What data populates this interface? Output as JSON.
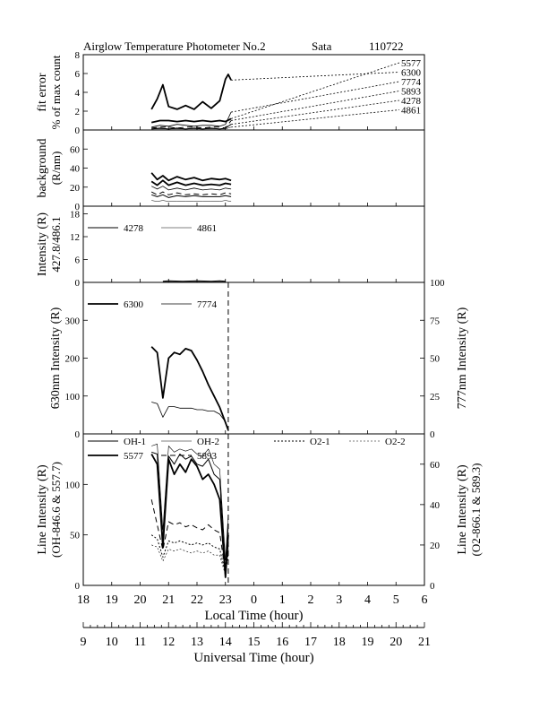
{
  "figure": {
    "title": "Airglow Temperature Photometer No.2",
    "site": "Sata",
    "date_code": "110722"
  },
  "chart_data": [
    {
      "id": "fit-error",
      "type": "line",
      "ylabel": "fit error",
      "ylabel2": "% of max count",
      "ylim": [
        0,
        8
      ],
      "yticks": [
        "0",
        "2",
        "4",
        "6",
        "8"
      ],
      "legend": [
        "5577",
        "6300",
        "7774",
        "5893",
        "4278",
        "4861"
      ],
      "series": [
        {
          "name": "6300",
          "x": [
            20.4,
            20.6,
            20.8,
            21.0,
            21.3,
            21.6,
            21.9,
            22.2,
            22.5,
            22.8,
            23.0,
            23.1,
            23.2
          ],
          "y": [
            2.2,
            3.3,
            4.8,
            2.5,
            2.2,
            2.6,
            2.2,
            3.0,
            2.3,
            3.1,
            5.4,
            5.9,
            5.3
          ]
        },
        {
          "name": "5577",
          "x": [
            20.4,
            20.7,
            21.0,
            21.3,
            21.6,
            21.9,
            22.2,
            22.5,
            22.8,
            23.0,
            23.2
          ],
          "y": [
            0.8,
            1.0,
            1.0,
            0.9,
            1.0,
            0.9,
            1.0,
            0.9,
            1.0,
            0.9,
            1.2
          ]
        },
        {
          "name": "7774",
          "x": [
            20.4,
            20.7,
            21.0,
            21.3,
            21.6,
            21.9,
            22.2,
            22.5,
            22.8,
            23.0,
            23.2
          ],
          "y": [
            0.3,
            0.5,
            0.4,
            0.6,
            0.5,
            0.4,
            0.5,
            0.5,
            0.4,
            0.6,
            1.9
          ]
        },
        {
          "name": "5893",
          "x": [
            20.4,
            20.7,
            21.0,
            21.3,
            21.6,
            21.9,
            22.2,
            22.5,
            22.8,
            23.0,
            23.2
          ],
          "y": [
            0.2,
            0.3,
            0.3,
            0.2,
            0.3,
            0.3,
            0.2,
            0.3,
            0.3,
            0.2,
            1.0
          ]
        },
        {
          "name": "4278",
          "x": [
            20.4,
            20.7,
            21.0,
            21.3,
            21.6,
            21.9,
            22.2,
            22.5,
            22.8,
            23.0,
            23.2
          ],
          "y": [
            0.1,
            0.2,
            0.1,
            0.2,
            0.1,
            0.2,
            0.1,
            0.2,
            0.1,
            0.2,
            0.6
          ]
        },
        {
          "name": "4861",
          "x": [
            20.4,
            20.7,
            21.0,
            21.3,
            21.6,
            21.9,
            22.2,
            22.5,
            22.8,
            23.0,
            23.2
          ],
          "y": [
            0.1,
            0.1,
            0.1,
            0.1,
            0.1,
            0.1,
            0.1,
            0.1,
            0.1,
            0.1,
            0.3
          ]
        }
      ]
    },
    {
      "id": "background",
      "type": "line",
      "ylabel": "background",
      "ylabel2": "(R/nm)",
      "ylim": [
        0,
        80
      ],
      "yticks": [
        "0",
        "20",
        "40",
        "60"
      ],
      "series": [
        {
          "name": "6300",
          "x": [
            20.4,
            20.6,
            20.8,
            21.0,
            21.3,
            21.6,
            21.9,
            22.2,
            22.5,
            22.8,
            23.0,
            23.2
          ],
          "y": [
            35,
            28,
            32,
            27,
            31,
            28,
            30,
            27,
            29,
            28,
            29,
            27
          ]
        },
        {
          "name": "5577",
          "x": [
            20.4,
            20.6,
            20.8,
            21.0,
            21.3,
            21.6,
            21.9,
            22.2,
            22.5,
            22.8,
            23.0,
            23.2
          ],
          "y": [
            26,
            22,
            27,
            22,
            25,
            22,
            24,
            22,
            23,
            22,
            24,
            23
          ]
        },
        {
          "name": "7774",
          "x": [
            20.4,
            20.6,
            20.8,
            21.0,
            21.3,
            21.6,
            21.9,
            22.2,
            22.5,
            22.8,
            23.0,
            23.2
          ],
          "y": [
            21,
            18,
            21,
            17,
            19,
            17,
            19,
            17,
            18,
            17,
            19,
            18
          ]
        },
        {
          "name": "5893",
          "x": [
            20.4,
            20.6,
            20.8,
            21.0,
            21.3,
            21.6,
            21.9,
            22.2,
            22.5,
            22.8,
            23.0,
            23.2
          ],
          "y": [
            15,
            12,
            15,
            12,
            14,
            12,
            13,
            12,
            13,
            12,
            14,
            13
          ]
        },
        {
          "name": "4278",
          "x": [
            20.4,
            20.6,
            20.8,
            21.0,
            21.3,
            21.6,
            21.9,
            22.2,
            22.5,
            22.8,
            23.0,
            23.2
          ],
          "y": [
            12,
            10,
            12,
            9,
            11,
            10,
            11,
            10,
            10,
            10,
            11,
            10
          ]
        },
        {
          "name": "4861",
          "x": [
            20.4,
            20.6,
            20.8,
            21.0,
            21.3,
            21.6,
            21.9,
            22.2,
            22.5,
            22.8,
            23.0,
            23.2
          ],
          "y": [
            6,
            5,
            6,
            5,
            5,
            5,
            5,
            5,
            5,
            5,
            6,
            5
          ]
        }
      ]
    },
    {
      "id": "intensity-427-486",
      "type": "line",
      "ylabel": "Intensity (R)",
      "ylabel2": "427.8/486.1",
      "ylim": [
        0,
        20
      ],
      "yticks": [
        "0",
        "6",
        "12",
        "18"
      ],
      "legend": [
        "4278",
        "4861"
      ],
      "series": [
        {
          "name": "4278",
          "x": [
            20.8,
            21.0,
            21.5,
            22.0,
            22.5,
            22.8,
            23.0
          ],
          "y": [
            0.3,
            0.4,
            0.3,
            0.4,
            0.3,
            0.4,
            0.3
          ]
        },
        {
          "name": "4861",
          "x": [
            20.8,
            21.0,
            21.5,
            22.0,
            22.5,
            22.8,
            23.0
          ],
          "y": [
            0.2,
            0.2,
            0.2,
            0.2,
            0.2,
            0.2,
            0.2
          ]
        }
      ]
    },
    {
      "id": "intensity-630-777",
      "type": "line",
      "ylabel": "630nm Intensity (R)",
      "ylabel_right": "777nm Intensity (R)",
      "ylim": [
        0,
        400
      ],
      "ylim_right": [
        0,
        100
      ],
      "yticks": [
        "0",
        "100",
        "200",
        "300"
      ],
      "yticks_right": [
        "0",
        "25",
        "50",
        "75",
        "100"
      ],
      "legend": [
        "6300",
        "7774"
      ],
      "series": [
        {
          "name": "6300",
          "axis": "left",
          "x": [
            20.4,
            20.6,
            20.8,
            21.0,
            21.2,
            21.4,
            21.6,
            21.8,
            22.0,
            22.2,
            22.4,
            22.6,
            22.8,
            23.0,
            23.1
          ],
          "y": [
            230,
            215,
            95,
            200,
            215,
            210,
            225,
            220,
            195,
            165,
            130,
            100,
            70,
            30,
            10
          ]
        },
        {
          "name": "7774",
          "axis": "right",
          "x": [
            20.4,
            20.6,
            20.8,
            21.0,
            21.2,
            21.4,
            21.6,
            21.8,
            22.0,
            22.2,
            22.4,
            22.6,
            22.8,
            23.0,
            23.1
          ],
          "y": [
            21,
            20,
            11,
            18,
            18,
            17,
            17,
            17,
            16,
            16,
            15,
            15,
            13,
            8,
            3
          ]
        }
      ]
    },
    {
      "id": "line-intensity",
      "type": "line",
      "ylabel": "Line Intensity (R)",
      "ylabel2": "(OH-846.6 & 557.7)",
      "ylabel_right": "Line Intensity (R)",
      "ylabel_right2": "(O2-866.1 & 589.3)",
      "ylim": [
        0,
        150
      ],
      "ylim_right": [
        0,
        75
      ],
      "yticks": [
        "0",
        "50",
        "100"
      ],
      "yticks_right": [
        "0",
        "20",
        "40",
        "60"
      ],
      "legend": [
        "OH-1",
        "OH-2",
        "O2-1",
        "O2-2",
        "5577",
        "5893"
      ],
      "series": [
        {
          "name": "OH-1",
          "axis": "left",
          "x": [
            20.4,
            20.6,
            20.8,
            21.0,
            21.2,
            21.4,
            21.6,
            21.8,
            22.0,
            22.2,
            22.4,
            22.6,
            22.8,
            23.0,
            23.1
          ],
          "y": [
            132,
            130,
            45,
            128,
            120,
            130,
            125,
            128,
            120,
            118,
            125,
            110,
            105,
            15,
            60
          ]
        },
        {
          "name": "OH-2",
          "axis": "left",
          "x": [
            20.4,
            20.6,
            20.8,
            21.0,
            21.2,
            21.4,
            21.6,
            21.8,
            22.0,
            22.2,
            22.4,
            22.6,
            22.8,
            23.0,
            23.1
          ],
          "y": [
            138,
            140,
            55,
            138,
            132,
            135,
            133,
            135,
            130,
            128,
            135,
            120,
            115,
            25,
            70
          ]
        },
        {
          "name": "O2-1",
          "axis": "right",
          "x": [
            20.4,
            20.6,
            20.8,
            21.0,
            21.2,
            21.4,
            21.6,
            21.8,
            22.0,
            22.2,
            22.4,
            22.6,
            22.8,
            23.0,
            23.1
          ],
          "y": [
            25,
            23,
            14,
            22,
            21,
            22,
            21,
            20,
            21,
            20,
            21,
            19,
            18,
            6,
            18
          ]
        },
        {
          "name": "O2-2",
          "axis": "right",
          "x": [
            20.4,
            20.6,
            20.8,
            21.0,
            21.2,
            21.4,
            21.6,
            21.8,
            22.0,
            22.2,
            22.4,
            22.6,
            22.8,
            23.0,
            23.1
          ],
          "y": [
            20,
            19,
            12,
            18,
            17,
            18,
            17,
            16,
            17,
            16,
            17,
            15,
            15,
            5,
            15
          ]
        },
        {
          "name": "5577",
          "axis": "left",
          "x": [
            20.4,
            20.6,
            20.8,
            21.0,
            21.2,
            21.4,
            21.6,
            21.8,
            22.0,
            22.2,
            22.4,
            22.6,
            22.8,
            23.0,
            23.1
          ],
          "y": [
            130,
            120,
            38,
            125,
            110,
            120,
            112,
            125,
            118,
            105,
            110,
            100,
            85,
            8,
            50
          ]
        },
        {
          "name": "5893",
          "axis": "left",
          "x": [
            20.4,
            20.6,
            20.8,
            21.0,
            21.2,
            21.4,
            21.6,
            21.8,
            22.0,
            22.2,
            22.4,
            22.6,
            22.8,
            23.0,
            23.1
          ],
          "y": [
            85,
            60,
            35,
            63,
            60,
            62,
            58,
            60,
            57,
            55,
            60,
            55,
            52,
            12,
            40
          ]
        }
      ]
    }
  ],
  "x_axis": {
    "label": "Local Time (hour)",
    "ticks": [
      "18",
      "19",
      "20",
      "21",
      "22",
      "23",
      "0",
      "1",
      "2",
      "3",
      "4",
      "5",
      "6"
    ],
    "range": [
      18,
      30
    ],
    "marker_time": 23.1
  },
  "ut_axis": {
    "label": "Universal Time (hour)",
    "ticks": [
      "9",
      "10",
      "11",
      "12",
      "13",
      "14",
      "15",
      "16",
      "17",
      "18",
      "19",
      "20",
      "21"
    ]
  },
  "series_styles": {
    "4278": {
      "width": 1.0,
      "dash": ""
    },
    "4861": {
      "width": 0.5,
      "dash": ""
    },
    "5577": {
      "width": 1.8,
      "dash": ""
    },
    "5893": {
      "width": 1.0,
      "dash": "6,4"
    },
    "6300": {
      "width": 1.8,
      "dash": ""
    },
    "7774": {
      "width": 0.8,
      "dash": ""
    },
    "OH-1": {
      "width": 1.0,
      "dash": ""
    },
    "OH-2": {
      "width": 0.6,
      "dash": ""
    },
    "O2-1": {
      "width": 1.0,
      "dash": "2,2"
    },
    "O2-2": {
      "width": 0.6,
      "dash": "2,2"
    }
  }
}
